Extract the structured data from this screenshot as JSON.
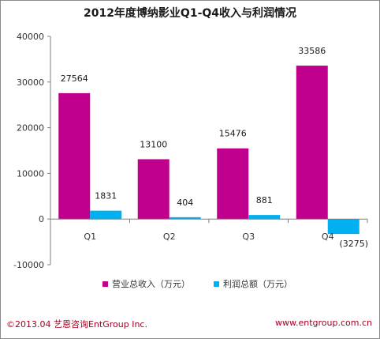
{
  "chart_data": {
    "type": "bar",
    "title": "2012年度博纳影业Q1-Q4收入与利润情况",
    "categories": [
      "Q1",
      "Q2",
      "Q3",
      "Q4"
    ],
    "series": [
      {
        "name": "营业总收入（万元）",
        "values": [
          27564,
          13100,
          15476,
          33586
        ],
        "labels": [
          "27564",
          "13100",
          "15476",
          "33586"
        ],
        "color": "#c0008c"
      },
      {
        "name": "利润总额（万元）",
        "values": [
          1831,
          404,
          881,
          -3275
        ],
        "labels": [
          "1831",
          "404",
          "881",
          "(3275)"
        ],
        "color": "#00b0f0"
      }
    ],
    "negative_label_color": "#c0392b",
    "ylim": [
      -10000,
      40000
    ],
    "yticks": [
      -10000,
      0,
      10000,
      20000,
      30000,
      40000
    ],
    "ytick_labels": [
      "-10000",
      "0",
      "10000",
      "20000",
      "30000",
      "40000"
    ],
    "legend_position": "bottom",
    "grid": false
  },
  "footer": {
    "left": "©2013.04  艺恩咨询EntGroup Inc.",
    "right": "www.entgroup.com.cn"
  }
}
